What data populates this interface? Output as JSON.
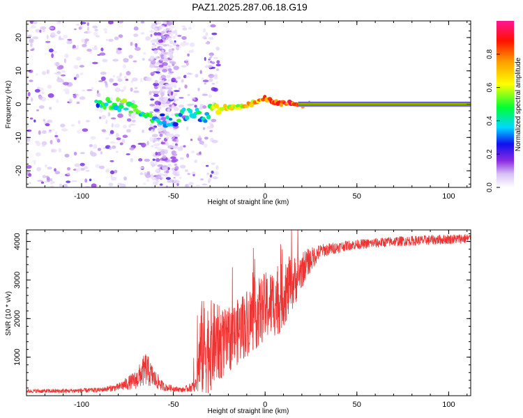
{
  "title": "PAZ1.2025.287.06.18.G19",
  "chart_data": [
    {
      "type": "heatmap",
      "title": "PAZ1.2025.287.06.18.G19",
      "xlabel": "Height of straight line (km)",
      "ylabel": "Frequency (Hz)",
      "xlim": [
        -130,
        112
      ],
      "ylim": [
        -25,
        25
      ],
      "xticks": [
        -100,
        -50,
        0,
        50,
        100
      ],
      "yticks": [
        -20,
        -10,
        0,
        10,
        20
      ],
      "xtick_labels": [
        "-100",
        "-50",
        "0",
        "50",
        "100"
      ],
      "ytick_labels": [
        "-20",
        "-10",
        "0",
        "10",
        "20"
      ],
      "colorbar": {
        "label": "Normalized spectral amplitude",
        "range": [
          0,
          1
        ],
        "ticks": [
          0.0,
          0.2,
          0.4,
          0.6,
          0.8
        ],
        "tick_labels": [
          "0.0",
          "0.2",
          "0.4",
          "0.6",
          "0.8"
        ]
      },
      "ridge": {
        "description": "dominant frequency trace vs height",
        "points": [
          {
            "x": -90,
            "y": 0.5,
            "a": 0.4
          },
          {
            "x": -82,
            "y": 0.0,
            "a": 0.45
          },
          {
            "x": -75,
            "y": -0.5,
            "a": 0.5
          },
          {
            "x": -68,
            "y": -2.5,
            "a": 0.45
          },
          {
            "x": -60,
            "y": -4.0,
            "a": 0.4
          },
          {
            "x": -52,
            "y": -5.5,
            "a": 0.35
          },
          {
            "x": -44,
            "y": -3.0,
            "a": 0.4
          },
          {
            "x": -38,
            "y": -2.5,
            "a": 0.45
          },
          {
            "x": -33,
            "y": -4.0,
            "a": 0.35
          },
          {
            "x": -28,
            "y": -1.0,
            "a": 0.55
          },
          {
            "x": -20,
            "y": -1.0,
            "a": 0.6
          },
          {
            "x": -12,
            "y": -0.5,
            "a": 0.65
          },
          {
            "x": -6,
            "y": 0.5,
            "a": 0.7
          },
          {
            "x": 0,
            "y": 1.5,
            "a": 0.75
          },
          {
            "x": 5,
            "y": 0.5,
            "a": 0.8
          },
          {
            "x": 15,
            "y": 0.2,
            "a": 0.85
          },
          {
            "x": 25,
            "y": 0.0,
            "a": 0.9
          },
          {
            "x": 112,
            "y": 0.0,
            "a": 0.95
          }
        ]
      }
    },
    {
      "type": "line",
      "xlabel": "Height of straight line (km)",
      "ylabel": "SNR (10 * v/v)",
      "xlim": [
        -130,
        112
      ],
      "ylim": [
        0,
        4300
      ],
      "xticks": [
        -100,
        -50,
        0,
        50,
        100
      ],
      "yticks": [
        1000,
        2000,
        3000,
        4000
      ],
      "xtick_labels": [
        "-100",
        "-50",
        "0",
        "50",
        "100"
      ],
      "ytick_labels": [
        "1000",
        "2000",
        "3000",
        "4000"
      ],
      "color": "#ee3333",
      "series": [
        {
          "name": "SNR",
          "envelope": [
            {
              "x": -130,
              "base": 120,
              "noise": 50
            },
            {
              "x": -110,
              "base": 120,
              "noise": 60
            },
            {
              "x": -90,
              "base": 150,
              "noise": 60
            },
            {
              "x": -80,
              "base": 220,
              "noise": 100
            },
            {
              "x": -70,
              "base": 420,
              "noise": 250
            },
            {
              "x": -65,
              "base": 700,
              "noise": 450
            },
            {
              "x": -60,
              "base": 420,
              "noise": 250
            },
            {
              "x": -55,
              "base": 220,
              "noise": 100
            },
            {
              "x": -45,
              "base": 150,
              "noise": 60
            },
            {
              "x": -38,
              "base": 250,
              "noise": 150
            },
            {
              "x": -35,
              "base": 1200,
              "noise": 1300
            },
            {
              "x": -30,
              "base": 1300,
              "noise": 1200
            },
            {
              "x": -20,
              "base": 1400,
              "noise": 800
            },
            {
              "x": -10,
              "base": 1900,
              "noise": 900
            },
            {
              "x": 0,
              "base": 2300,
              "noise": 900
            },
            {
              "x": 8,
              "base": 2500,
              "noise": 900
            },
            {
              "x": 15,
              "base": 2900,
              "noise": 700
            },
            {
              "x": 22,
              "base": 3400,
              "noise": 400
            },
            {
              "x": 30,
              "base": 3750,
              "noise": 180
            },
            {
              "x": 45,
              "base": 3900,
              "noise": 130
            },
            {
              "x": 70,
              "base": 4000,
              "noise": 130
            },
            {
              "x": 112,
              "base": 4080,
              "noise": 130
            }
          ]
        }
      ]
    }
  ]
}
